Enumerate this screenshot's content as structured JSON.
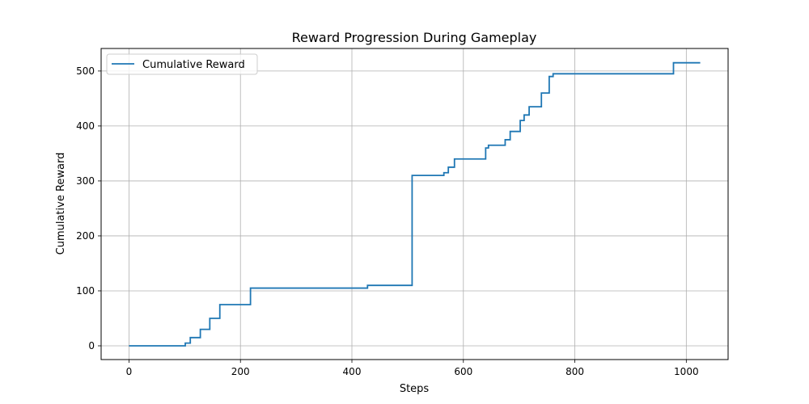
{
  "chart_data": {
    "type": "line",
    "title": "Reward Progression During Gameplay",
    "xlabel": "Steps",
    "ylabel": "Cumulative Reward",
    "xlim": [
      -50,
      1075
    ],
    "ylim": [
      -25,
      541
    ],
    "xticks": [
      0,
      200,
      400,
      600,
      800,
      1000
    ],
    "yticks": [
      0,
      100,
      200,
      300,
      400,
      500
    ],
    "xtick_labels": [
      "0",
      "200",
      "400",
      "600",
      "800",
      "1000"
    ],
    "ytick_labels": [
      "0",
      "100",
      "200",
      "300",
      "400",
      "500"
    ],
    "grid": true,
    "legend": {
      "position": "upper-left",
      "entries": [
        "Cumulative Reward"
      ]
    },
    "series": [
      {
        "name": "Cumulative Reward",
        "color": "#1f77b4",
        "drawstyle": "steps-post",
        "x": [
          0,
          101,
          110,
          128,
          145,
          163,
          218,
          428,
          508,
          565,
          573,
          584,
          640,
          645,
          675,
          684,
          702,
          709,
          718,
          740,
          754,
          761,
          977,
          1025
        ],
        "y": [
          0,
          5,
          15,
          30,
          50,
          75,
          105,
          110,
          310,
          315,
          325,
          340,
          360,
          365,
          375,
          390,
          410,
          420,
          435,
          460,
          490,
          495,
          515,
          515
        ]
      }
    ]
  }
}
